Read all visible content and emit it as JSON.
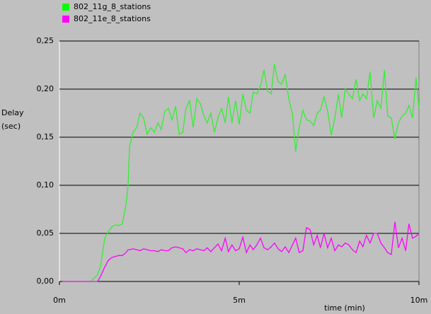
{
  "chart_data": {
    "type": "line",
    "xlabel": "time (min)",
    "ylabel": [
      "Delay",
      "(sec)"
    ],
    "x": [
      0.08,
      0.87,
      1.06,
      1.14,
      1.26,
      1.36,
      1.46,
      1.56,
      1.65,
      1.75,
      1.85,
      1.91,
      1.95,
      2.05,
      2.15,
      2.24,
      2.34,
      2.44,
      2.54,
      2.64,
      2.74,
      2.83,
      2.93,
      3.03,
      3.13,
      3.23,
      3.33,
      3.43,
      3.52,
      3.62,
      3.72,
      3.82,
      3.92,
      4.02,
      4.11,
      4.21,
      4.31,
      4.41,
      4.51,
      4.61,
      4.7,
      4.8,
      4.9,
      5.0,
      5.1,
      5.2,
      5.3,
      5.39,
      5.49,
      5.59,
      5.69,
      5.79,
      5.89,
      5.98,
      6.08,
      6.18,
      6.28,
      6.38,
      6.48,
      6.57,
      6.67,
      6.77,
      6.87,
      6.97,
      7.07,
      7.17,
      7.26,
      7.36,
      7.46,
      7.56,
      7.66,
      7.76,
      7.85,
      7.95,
      8.05,
      8.15,
      8.25,
      8.35,
      8.44,
      8.54,
      8.64,
      8.74,
      8.84,
      8.94,
      9.04,
      9.13,
      9.23,
      9.33,
      9.43,
      9.53,
      9.63,
      9.72,
      9.82,
      9.92,
      10.0
    ],
    "series": [
      {
        "name": "802_11g_8_stations",
        "color": "#00ff00",
        "line_color": "#33ee33",
        "values": [
          0,
          0,
          0.007,
          0.015,
          0.045,
          0.052,
          0.057,
          0.059,
          0.058,
          0.06,
          0.08,
          0.1,
          0.14,
          0.155,
          0.16,
          0.175,
          0.17,
          0.153,
          0.16,
          0.155,
          0.165,
          0.158,
          0.177,
          0.18,
          0.168,
          0.182,
          0.153,
          0.155,
          0.18,
          0.188,
          0.16,
          0.19,
          0.185,
          0.172,
          0.165,
          0.175,
          0.155,
          0.17,
          0.18,
          0.165,
          0.192,
          0.165,
          0.188,
          0.163,
          0.195,
          0.178,
          0.175,
          0.197,
          0.195,
          0.203,
          0.22,
          0.198,
          0.195,
          0.226,
          0.208,
          0.205,
          0.215,
          0.19,
          0.174,
          0.135,
          0.16,
          0.178,
          0.168,
          0.167,
          0.162,
          0.175,
          0.178,
          0.192,
          0.177,
          0.152,
          0.17,
          0.195,
          0.17,
          0.2,
          0.195,
          0.19,
          0.21,
          0.188,
          0.195,
          0.19,
          0.218,
          0.17,
          0.188,
          0.18,
          0.22,
          0.172,
          0.17,
          0.148,
          0.165,
          0.172,
          0.175,
          0.183,
          0.17,
          0.212,
          0.18
        ]
      },
      {
        "name": "802_11e_8_stations",
        "color": "#ff00ff",
        "line_color": "#ff00ff",
        "values": [
          0,
          0,
          0,
          0.005,
          0.015,
          0.022,
          0.025,
          0.026,
          0.027,
          0.027,
          0.03,
          0.033,
          0.033,
          0.034,
          0.033,
          0.032,
          0.034,
          0.033,
          0.032,
          0.032,
          0.031,
          0.033,
          0.032,
          0.032,
          0.035,
          0.036,
          0.035,
          0.034,
          0.03,
          0.033,
          0.032,
          0.034,
          0.033,
          0.032,
          0.035,
          0.031,
          0.035,
          0.039,
          0.032,
          0.045,
          0.031,
          0.038,
          0.032,
          0.034,
          0.046,
          0.03,
          0.038,
          0.033,
          0.038,
          0.045,
          0.035,
          0.033,
          0.036,
          0.04,
          0.034,
          0.031,
          0.036,
          0.03,
          0.038,
          0.045,
          0.03,
          0.032,
          0.056,
          0.054,
          0.038,
          0.048,
          0.035,
          0.05,
          0.035,
          0.045,
          0.032,
          0.038,
          0.036,
          0.04,
          0.038,
          0.033,
          0.03,
          0.042,
          0.036,
          0.048,
          0.04,
          0.05,
          0.05,
          0.04,
          0.035,
          0.03,
          0.028,
          0.062,
          0.035,
          0.045,
          0.032,
          0.06,
          0.045,
          0.047,
          0.05
        ]
      }
    ],
    "xlim": [
      0,
      10
    ],
    "xticks": [
      {
        "value": 0,
        "label": "0m"
      },
      {
        "value": 5,
        "label": "5m"
      },
      {
        "value": 10,
        "label": "10m"
      }
    ],
    "ylim": [
      0,
      0.25
    ],
    "yticks": [
      {
        "value": 0,
        "label": "0,00"
      },
      {
        "value": 0.05,
        "label": "0,05"
      },
      {
        "value": 0.1,
        "label": "0,10"
      },
      {
        "value": 0.15,
        "label": "0,15"
      },
      {
        "value": 0.2,
        "label": "0,20"
      },
      {
        "value": 0.25,
        "label": "0,25"
      }
    ],
    "grid": true
  }
}
